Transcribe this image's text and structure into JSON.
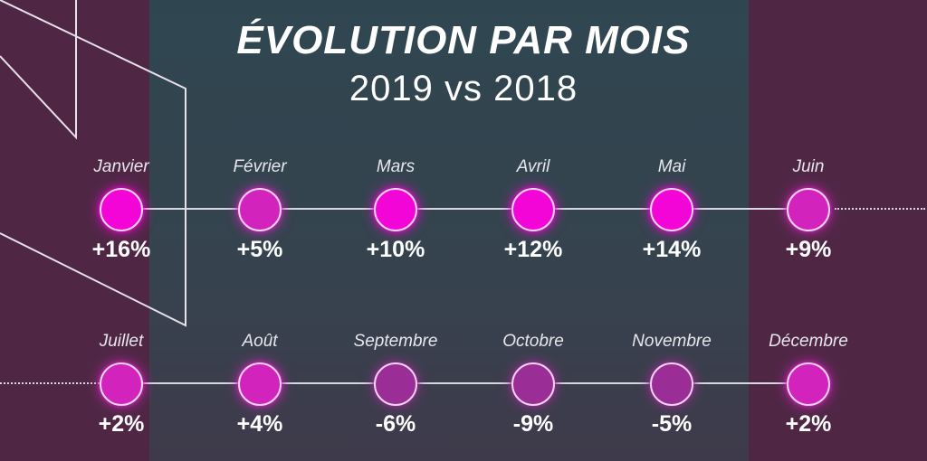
{
  "title": "ÉVOLUTION PAR MOIS",
  "subtitle": "2019 vs 2018",
  "colors": {
    "background": "#4f2745",
    "panel": "#334650",
    "node_strong": "#f205d6",
    "node_mid": "#d323bd",
    "node_dim": "#9a2d96",
    "line": "#d8d8e0"
  },
  "rows": [
    {
      "months": [
        {
          "name": "Janvier",
          "change": "+16%",
          "value": 16
        },
        {
          "name": "Février",
          "change": "+5%",
          "value": 5
        },
        {
          "name": "Mars",
          "change": "+10%",
          "value": 10
        },
        {
          "name": "Avril",
          "change": "+12%",
          "value": 12
        },
        {
          "name": "Mai",
          "change": "+14%",
          "value": 14
        },
        {
          "name": "Juin",
          "change": "+9%",
          "value": 9
        }
      ]
    },
    {
      "months": [
        {
          "name": "Juillet",
          "change": "+2%",
          "value": 2
        },
        {
          "name": "Août",
          "change": "+4%",
          "value": 4
        },
        {
          "name": "Septembre",
          "change": "-6%",
          "value": -6
        },
        {
          "name": "Octobre",
          "change": "-9%",
          "value": -9
        },
        {
          "name": "Novembre",
          "change": "-5%",
          "value": -5
        },
        {
          "name": "Décembre",
          "change": "+2%",
          "value": 2
        }
      ]
    }
  ]
}
